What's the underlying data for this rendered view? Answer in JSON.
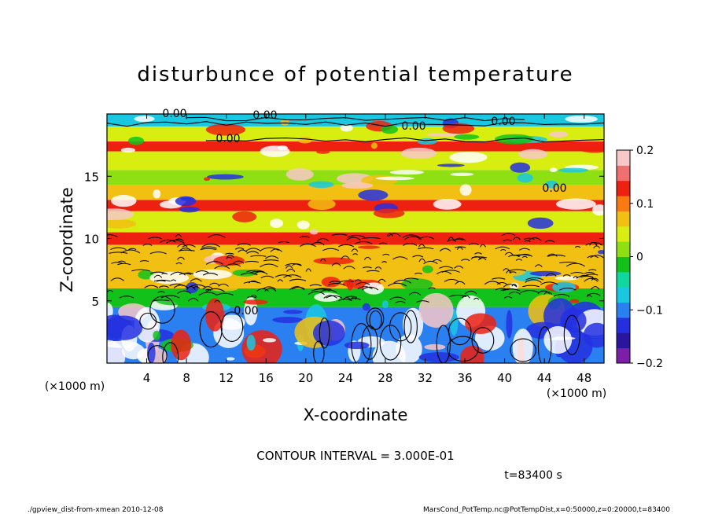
{
  "chart_data": {
    "type": "heatmap",
    "title": "disturbunce of potential temperature",
    "xlabel": "X-coordinate",
    "ylabel": "Z-coordinate",
    "x_unit": "(×1000 m)",
    "y_unit": "(×1000 m)",
    "xlim": [
      0,
      50
    ],
    "ylim": [
      0,
      20
    ],
    "x_ticks": [
      4,
      8,
      12,
      16,
      20,
      24,
      28,
      32,
      36,
      40,
      44,
      48
    ],
    "y_ticks": [
      5,
      10,
      15
    ],
    "contour_labels": [
      "0.00",
      "0.00",
      "0.00",
      "0.00",
      "0.00",
      "0.00",
      "0.00"
    ],
    "contour_interval_text": "CONTOUR INTERVAL = 3.000E-01",
    "time_text": "t=83400 s",
    "colorbar": {
      "range": [
        -0.2,
        0.2
      ],
      "tick_values": [
        0.2,
        0.1,
        0,
        -0.1,
        -0.2
      ],
      "tick_labels": [
        "0.2",
        "0.1",
        "0",
        "−0.1",
        "−0.2"
      ],
      "colors": [
        "#7c1ea8",
        "#2a14a0",
        "#2430e0",
        "#2a80f0",
        "#19c8e0",
        "#10d7a0",
        "#12c21a",
        "#8ee012",
        "#d8ee10",
        "#f2c012",
        "#f87a10",
        "#ee2010",
        "#f07070",
        "#f8c8c8"
      ]
    },
    "bands": [
      {
        "z0": 0,
        "z1": 4.5,
        "value": -0.1
      },
      {
        "z0": 4.5,
        "z1": 6.0,
        "value": -0.02
      },
      {
        "z0": 6.0,
        "z1": 9.5,
        "value": 0.08
      },
      {
        "z0": 9.5,
        "z1": 10.5,
        "value": 0.14
      },
      {
        "z0": 10.5,
        "z1": 12.2,
        "value": 0.03
      },
      {
        "z0": 12.2,
        "z1": 13.1,
        "value": 0.13
      },
      {
        "z0": 13.1,
        "z1": 14.3,
        "value": 0.08
      },
      {
        "z0": 14.3,
        "z1": 15.5,
        "value": 0.02
      },
      {
        "z0": 15.5,
        "z1": 17.0,
        "value": 0.05
      },
      {
        "z0": 17.0,
        "z1": 17.8,
        "value": 0.13
      },
      {
        "z0": 17.8,
        "z1": 19.0,
        "value": 0.03
      },
      {
        "z0": 19.0,
        "z1": 20.0,
        "value": -0.06
      }
    ]
  },
  "footer": {
    "left": "./gpview_dist-from-xmean  2010-12-08",
    "right": "MarsCond_PotTemp.nc@PotTempDist,x=0:50000,z=0:20000,t=83400"
  }
}
